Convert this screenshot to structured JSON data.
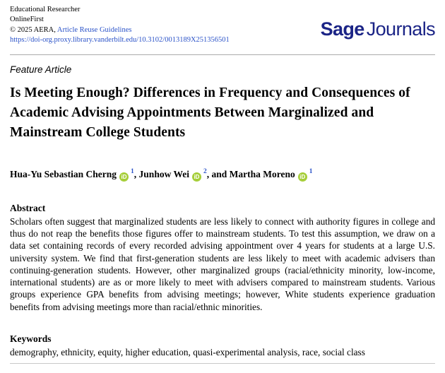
{
  "header": {
    "journal_name": "Educational Researcher",
    "edition": "OnlineFirst",
    "copyright_prefix": "© 2025 AERA, ",
    "reuse_link_label": "Article Reuse Guidelines",
    "doi_link": "https://doi-org.proxy.library.vanderbilt.edu/10.3102/0013189X251356501",
    "logo": {
      "bold_part": "Sage",
      "regular_part": "Journals"
    }
  },
  "article": {
    "section_label": "Feature Article",
    "title": "Is Meeting Enough? Differences in Frequency and Consequences of Academic Advising Appointments Between Marginalized and Mainstream College Students",
    "authors": [
      {
        "name": "Hua-Yu Sebastian Cherng",
        "orcid_icon_text": "iD",
        "affiliation_sup": "1",
        "separator_after": ", "
      },
      {
        "name": "Junhow Wei",
        "orcid_icon_text": "iD",
        "affiliation_sup": "2",
        "separator_after": ", and "
      },
      {
        "name": "Martha Moreno",
        "orcid_icon_text": "iD",
        "affiliation_sup": "1",
        "separator_after": ""
      }
    ],
    "abstract_heading": "Abstract",
    "abstract_text": "Scholars often suggest that marginalized students are less likely to connect with authority figures in college and thus do not reap the benefits those figures offer to mainstream students. To test this assumption, we draw on a data set containing records of every recorded advising appointment over 4 years for students at a large U.S. university system. We find that first-generation students are less likely to meet with academic advisers than continuing-generation students. However, other marginalized groups (racial/ethnicity minority, low-income, international students) are as or more likely to meet with advisers compared to mainstream students. Various groups experience GPA benefits from advising meetings; however, White students experience graduation benefits from advising meetings more than racial/ethnic minorities.",
    "keywords_heading": "Keywords",
    "keywords_text": "demography, ethnicity, equity, higher education, quasi-experimental analysis, race, social class"
  },
  "colors": {
    "link_blue": "#2a52c8",
    "orcid_green": "#a6ce39",
    "sage_logo_navy": "#1b2486",
    "divider_gray": "#ababab"
  }
}
